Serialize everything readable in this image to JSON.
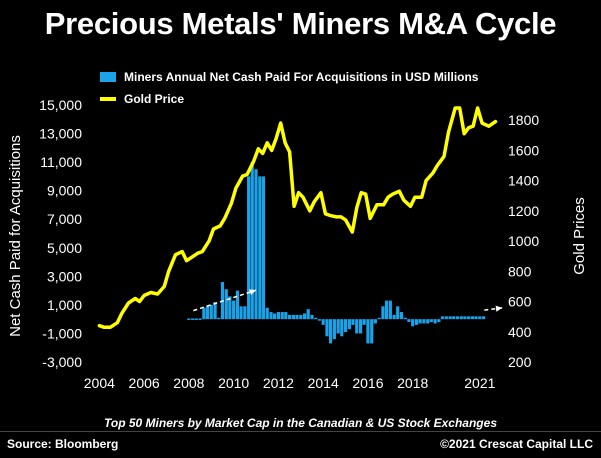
{
  "title": "Precious Metals' Miners M&A Cycle",
  "legend": {
    "bars": "Miners Annual Net Cash Paid For Acquisitions in USD Millions",
    "line": "Gold Price"
  },
  "subtitle": "Top 50 Miners by Market Cap in the Canadian & US Stock Exchanges",
  "source": "Source: Bloomberg",
  "copyright": "©2021 Crescat Capital LLC",
  "colors": {
    "bars": "#1aa3e8",
    "line": "#ffff00",
    "arrows": "#ffffff"
  },
  "chart_data": {
    "type": "bar+line",
    "title": "Precious Metals' Miners M&A Cycle",
    "xlabel": "",
    "y_left_label": "Net Cash Paid for Acquisitions",
    "y_right_label": "Gold Prices",
    "x_range": [
      2003.85,
      2021.9
    ],
    "y_left_range": [
      -3000,
      15000
    ],
    "y_right_range": [
      200,
      1900
    ],
    "x_ticks": [
      "2004",
      "2006",
      "2008",
      "2010",
      "2012",
      "2014",
      "2016",
      "2018",
      "2021"
    ],
    "x_tick_values": [
      2004,
      2006,
      2008,
      2010,
      2012,
      2014,
      2016,
      2018,
      2021
    ],
    "y_left_ticks": [
      "-3,000",
      "-1,000",
      "1,000",
      "3,000",
      "5,000",
      "7,000",
      "9,000",
      "11,000",
      "13,000",
      "15,000"
    ],
    "y_left_tick_values": [
      -3000,
      -1000,
      1000,
      3000,
      5000,
      7000,
      9000,
      11000,
      13000,
      15000
    ],
    "y_right_ticks": [
      "200",
      "400",
      "600",
      "800",
      "1000",
      "1200",
      "1400",
      "1600",
      "1800"
    ],
    "y_right_tick_values": [
      200,
      400,
      600,
      800,
      1000,
      1200,
      1400,
      1600,
      1800
    ],
    "grid": false,
    "legend_position": "top-left",
    "series": [
      {
        "name": "Miners Annual Net Cash Paid For Acquisitions in USD Millions",
        "type": "bar",
        "axis": "left",
        "x": [
          2008.0,
          2008.17,
          2008.33,
          2008.5,
          2008.67,
          2008.83,
          2009.0,
          2009.17,
          2009.33,
          2009.5,
          2009.67,
          2009.83,
          2010.0,
          2010.17,
          2010.33,
          2010.5,
          2010.67,
          2010.83,
          2011.0,
          2011.17,
          2011.33,
          2011.5,
          2011.67,
          2011.83,
          2012.0,
          2012.17,
          2012.33,
          2012.5,
          2012.67,
          2012.83,
          2013.0,
          2013.17,
          2013.33,
          2013.5,
          2013.67,
          2013.83,
          2014.0,
          2014.17,
          2014.33,
          2014.5,
          2014.67,
          2014.83,
          2015.0,
          2015.17,
          2015.33,
          2015.5,
          2015.67,
          2015.83,
          2016.0,
          2016.17,
          2016.33,
          2016.5,
          2016.67,
          2016.83,
          2017.0,
          2017.17,
          2017.33,
          2017.5,
          2017.67,
          2017.83,
          2018.0,
          2018.17,
          2018.33,
          2018.5,
          2018.67,
          2018.83,
          2019.0,
          2019.17,
          2019.33,
          2019.5,
          2019.67,
          2019.83,
          2020.0,
          2020.17,
          2020.33,
          2020.5,
          2020.67,
          2020.83,
          2021.0,
          2021.17
        ],
        "values": [
          50,
          50,
          50,
          50,
          800,
          900,
          1000,
          1200,
          100,
          2600,
          2100,
          1600,
          1300,
          2000,
          900,
          900,
          10000,
          11000,
          10500,
          10000,
          10000,
          800,
          500,
          400,
          500,
          500,
          500,
          300,
          300,
          300,
          300,
          400,
          700,
          300,
          100,
          -100,
          -400,
          -1200,
          -1700,
          -1400,
          -1000,
          -1200,
          -900,
          -700,
          -400,
          -1000,
          -1000,
          -400,
          -1700,
          -1700,
          -300,
          100,
          900,
          1300,
          1300,
          300,
          900,
          500,
          100,
          -200,
          -500,
          -400,
          -300,
          -300,
          -300,
          -200,
          -300,
          -200,
          200,
          200,
          200,
          200,
          200,
          200,
          200,
          200,
          200,
          200,
          200,
          200
        ]
      },
      {
        "name": "Gold Price",
        "type": "line",
        "axis": "right",
        "x": [
          2004.0,
          2004.2,
          2004.5,
          2004.8,
          2005.0,
          2005.3,
          2005.6,
          2005.8,
          2006.0,
          2006.3,
          2006.6,
          2006.9,
          2007.1,
          2007.4,
          2007.7,
          2007.9,
          2008.1,
          2008.4,
          2008.6,
          2008.9,
          2009.1,
          2009.4,
          2009.6,
          2009.9,
          2010.1,
          2010.4,
          2010.6,
          2010.9,
          2011.1,
          2011.3,
          2011.5,
          2011.7,
          2011.9,
          2012.1,
          2012.3,
          2012.5,
          2012.7,
          2012.9,
          2013.1,
          2013.4,
          2013.6,
          2013.9,
          2014.1,
          2014.3,
          2014.6,
          2014.8,
          2015.0,
          2015.3,
          2015.5,
          2015.7,
          2015.9,
          2016.1,
          2016.4,
          2016.7,
          2016.9,
          2017.1,
          2017.4,
          2017.6,
          2017.9,
          2018.1,
          2018.4,
          2018.6,
          2018.9,
          2019.1,
          2019.4,
          2019.6,
          2019.9,
          2020.1,
          2020.3,
          2020.5,
          2020.7,
          2020.9,
          2021.1,
          2021.4,
          2021.7
        ],
        "values": [
          440,
          430,
          430,
          460,
          520,
          590,
          620,
          600,
          640,
          660,
          650,
          700,
          800,
          910,
          930,
          870,
          890,
          920,
          930,
          1000,
          1080,
          1100,
          1150,
          1250,
          1350,
          1430,
          1440,
          1530,
          1610,
          1580,
          1650,
          1600,
          1680,
          1780,
          1650,
          1590,
          1230,
          1320,
          1290,
          1200,
          1260,
          1320,
          1180,
          1170,
          1160,
          1160,
          1140,
          1060,
          1220,
          1320,
          1310,
          1150,
          1240,
          1240,
          1290,
          1310,
          1330,
          1270,
          1230,
          1290,
          1290,
          1400,
          1450,
          1500,
          1560,
          1720,
          1880,
          1880,
          1710,
          1750,
          1760,
          1880,
          1780,
          1760,
          1790
        ]
      }
    ],
    "annotations": [
      {
        "type": "arrow",
        "from": [
          2008.2,
          600
        ],
        "to": [
          2011.0,
          2030
        ]
      },
      {
        "type": "arrow",
        "from": [
          2021.2,
          630
        ],
        "to": [
          2022.0,
          790
        ]
      }
    ]
  }
}
